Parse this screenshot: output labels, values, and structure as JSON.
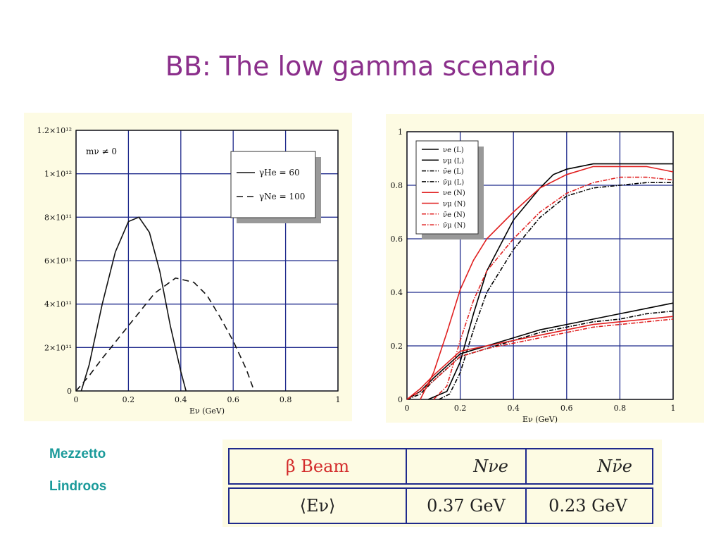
{
  "slide": {
    "title": "BB: The low gamma scenario",
    "credits": [
      "Mezzetto",
      "Lindroos"
    ]
  },
  "colors": {
    "title": "#8b2f8b",
    "credit": "#1a9a9a",
    "grid": "#1f2a8c",
    "panel_bg": "#fdfbe3",
    "red_series": "#e02020"
  },
  "chart_data": [
    {
      "type": "line",
      "xlabel": "Eν (GeV)",
      "xlim": [
        0,
        1
      ],
      "ylim": [
        0,
        1200000000000.0
      ],
      "x_ticks": [
        "0",
        "0.2",
        "0.4",
        "0.6",
        "0.8",
        "1"
      ],
      "y_ticks": [
        "0",
        "2×10¹¹",
        "4×10¹¹",
        "6×10¹¹",
        "8×10¹¹",
        "1×10¹²",
        "1.2×10¹²"
      ],
      "annotation": "mν ≠ 0",
      "grid": true,
      "legend_position": "top-right",
      "series": [
        {
          "name": "γHe = 60",
          "style": "solid",
          "x": [
            0.02,
            0.05,
            0.1,
            0.15,
            0.2,
            0.24,
            0.28,
            0.32,
            0.36,
            0.4,
            0.42
          ],
          "y": [
            0,
            120000000000.0,
            400000000000.0,
            640000000000.0,
            780000000000.0,
            800000000000.0,
            730000000000.0,
            550000000000.0,
            300000000000.0,
            90000000000.0,
            0
          ]
        },
        {
          "name": "γNe = 100",
          "style": "dashed",
          "x": [
            0,
            0.05,
            0.1,
            0.2,
            0.3,
            0.38,
            0.45,
            0.5,
            0.55,
            0.6,
            0.65,
            0.68
          ],
          "y": [
            0,
            70000000000.0,
            150000000000.0,
            300000000000.0,
            450000000000.0,
            520000000000.0,
            500000000000.0,
            440000000000.0,
            340000000000.0,
            230000000000.0,
            100000000000.0,
            0
          ]
        }
      ]
    },
    {
      "type": "line",
      "xlabel": "Eν (GeV)",
      "xlim": [
        0,
        1
      ],
      "ylim": [
        0,
        1
      ],
      "x_ticks": [
        "0",
        "0.2",
        "0.4",
        "0.6",
        "0.8",
        "1"
      ],
      "y_ticks": [
        "0",
        "0.2",
        "0.4",
        "0.6",
        "0.8",
        "1"
      ],
      "grid": true,
      "legend_position": "top-left",
      "series": [
        {
          "name": "νe (L)",
          "color": "#000000",
          "style": "solid",
          "x": [
            0.08,
            0.15,
            0.2,
            0.25,
            0.3,
            0.4,
            0.5,
            0.55,
            0.6,
            0.7,
            0.8,
            0.9,
            1.0
          ],
          "y": [
            0,
            0.03,
            0.14,
            0.32,
            0.48,
            0.67,
            0.79,
            0.84,
            0.86,
            0.88,
            0.88,
            0.88,
            0.88
          ]
        },
        {
          "name": "νμ (L)",
          "color": "#000000",
          "style": "solid",
          "x": [
            0,
            0.05,
            0.1,
            0.2,
            0.3,
            0.4,
            0.5,
            0.6,
            0.7,
            0.8,
            0.9,
            1.0
          ],
          "y": [
            0,
            0.03,
            0.08,
            0.17,
            0.2,
            0.23,
            0.26,
            0.28,
            0.3,
            0.32,
            0.34,
            0.36
          ]
        },
        {
          "name": "ν̄e (L)",
          "color": "#000000",
          "style": "dashdot",
          "x": [
            0.12,
            0.16,
            0.2,
            0.25,
            0.3,
            0.4,
            0.5,
            0.6,
            0.7,
            0.8,
            0.9,
            1.0
          ],
          "y": [
            0,
            0.02,
            0.1,
            0.26,
            0.4,
            0.56,
            0.68,
            0.76,
            0.79,
            0.8,
            0.81,
            0.81
          ]
        },
        {
          "name": "ν̄μ (L)",
          "color": "#000000",
          "style": "dashdot",
          "x": [
            0,
            0.05,
            0.1,
            0.2,
            0.3,
            0.4,
            0.5,
            0.6,
            0.7,
            0.8,
            0.9,
            1.0
          ],
          "y": [
            0,
            0.02,
            0.07,
            0.16,
            0.19,
            0.22,
            0.25,
            0.27,
            0.29,
            0.3,
            0.32,
            0.33
          ]
        },
        {
          "name": "νe (N)",
          "color": "#e02020",
          "style": "solid",
          "x": [
            0.05,
            0.1,
            0.15,
            0.2,
            0.25,
            0.3,
            0.4,
            0.5,
            0.6,
            0.7,
            0.8,
            0.9,
            1.0
          ],
          "y": [
            0,
            0.1,
            0.25,
            0.41,
            0.52,
            0.6,
            0.7,
            0.79,
            0.84,
            0.87,
            0.87,
            0.87,
            0.85
          ]
        },
        {
          "name": "νμ (N)",
          "color": "#e02020",
          "style": "solid",
          "x": [
            0,
            0.05,
            0.1,
            0.2,
            0.3,
            0.4,
            0.5,
            0.6,
            0.7,
            0.8,
            0.9,
            1.0
          ],
          "y": [
            0,
            0.04,
            0.09,
            0.18,
            0.2,
            0.22,
            0.24,
            0.26,
            0.28,
            0.29,
            0.3,
            0.31
          ]
        },
        {
          "name": "ν̄e (N)",
          "color": "#e02020",
          "style": "dashdot",
          "x": [
            0.1,
            0.15,
            0.2,
            0.25,
            0.3,
            0.4,
            0.5,
            0.6,
            0.7,
            0.8,
            0.9,
            1.0
          ],
          "y": [
            0,
            0.05,
            0.22,
            0.37,
            0.48,
            0.6,
            0.7,
            0.77,
            0.81,
            0.83,
            0.83,
            0.82
          ]
        },
        {
          "name": "ν̄μ (N)",
          "color": "#e02020",
          "style": "dashdot",
          "x": [
            0,
            0.05,
            0.1,
            0.2,
            0.3,
            0.4,
            0.5,
            0.6,
            0.7,
            0.8,
            0.9,
            1.0
          ],
          "y": [
            0,
            0.03,
            0.07,
            0.16,
            0.19,
            0.21,
            0.23,
            0.25,
            0.27,
            0.28,
            0.29,
            0.3
          ]
        }
      ]
    }
  ],
  "table": {
    "header": [
      "β Beam",
      "Nνe",
      "Nν̄e"
    ],
    "row": [
      "⟨Eν⟩",
      "0.37 GeV",
      "0.23 GeV"
    ]
  }
}
